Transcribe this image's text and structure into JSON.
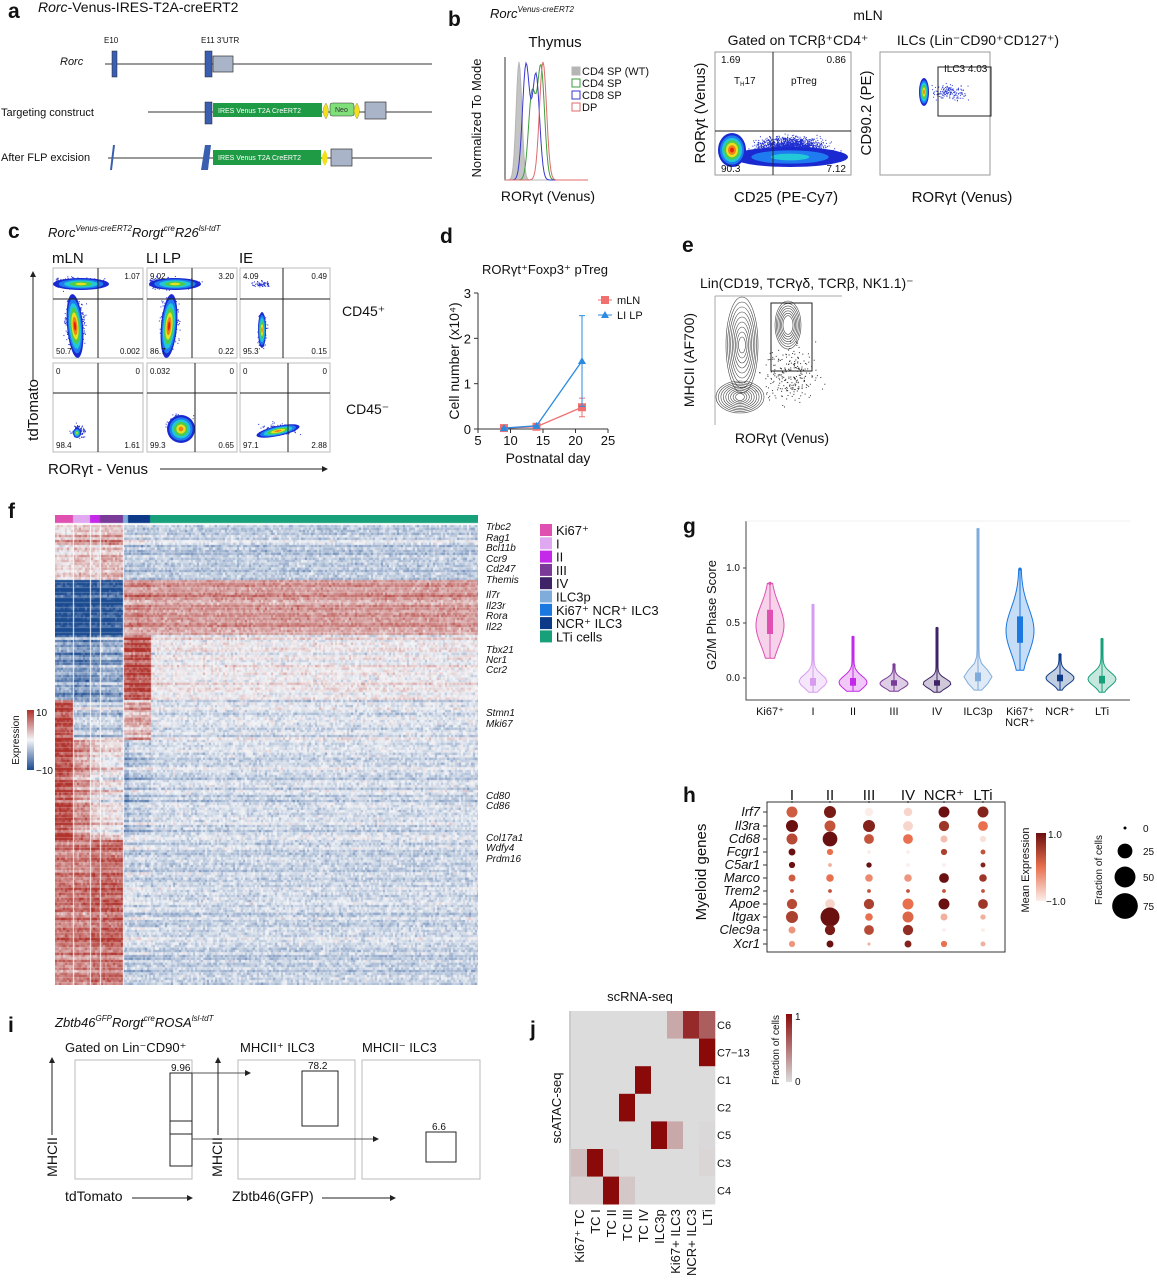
{
  "panel_a": {
    "label": "a",
    "title_italic": "Rorc",
    "title_rest": "-Venus-IRES-T2A-creERT2",
    "exon10": "E10",
    "exon11": "E11 3'UTR",
    "row_rorc": "Rorc",
    "row_targeting": "Targeting construct",
    "row_flp": "After FLP excision",
    "cassette": "IRES Venus T2A CreERT2",
    "neo": "Neo",
    "colors": {
      "exon": "#3a5fb0",
      "cassette": "#1f9a45",
      "neo": "#7fe07a",
      "frt": "#f2e01a",
      "utr": "#aab4c8"
    }
  },
  "panel_b": {
    "label": "b",
    "genotype": "Rorc",
    "genotype_sup": "Venus-creERT2",
    "thymus_title": "Thymus",
    "mln_title": "mLN",
    "hist_ylabel": "Normalized To Mode",
    "hist_xlabel": "RORγt (Venus)",
    "hist_legend": [
      {
        "name": "CD4 SP (WT)",
        "color": "#b5b5b5"
      },
      {
        "name": "CD4 SP",
        "color": "#3c9e3c"
      },
      {
        "name": "CD8 SP",
        "color": "#3838d0"
      },
      {
        "name": "DP",
        "color": "#e06a6a"
      }
    ],
    "tcr_title": "Gated on TCRβ⁺CD4⁺",
    "tcr_quadrants": {
      "tl": "1.69",
      "tr": "0.86",
      "bl": "90.3",
      "br": "7.12"
    },
    "th17": {
      "base": "T",
      "sub": "H",
      "rest": "17"
    },
    "ptreg": "pTreg",
    "tcr_ylabel": "RORγt (Venus)",
    "tcr_xlabel": "CD25 (PE-Cy7)",
    "ilc_title": "ILCs (Lin⁻CD90⁺CD127⁺)",
    "ilc_gate": "ILC3 4.03",
    "ilc_ylabel": "CD90.2 (PE)",
    "ilc_xlabel": "RORγt (Venus)"
  },
  "panel_c": {
    "label": "c",
    "genotype": [
      {
        "base": "Rorc",
        "sup": "Venus-creERT2"
      },
      {
        "base": "Rorgt",
        "sup": "cre"
      },
      {
        "base": "R26",
        "sup": "lsl-tdT"
      }
    ],
    "columns": [
      "mLN",
      "LI LP",
      "IE"
    ],
    "rows": [
      "CD45⁺",
      "CD45⁻"
    ],
    "quadrants": [
      [
        {
          "tl": "",
          "tr": "1.07",
          "bl": "50.7",
          "br": "0.002"
        },
        {
          "tl": "9.02",
          "tr": "3.20",
          "bl": "86.7",
          "br": "0.22"
        },
        {
          "tl": "4.09",
          "tr": "0.49",
          "bl": "95.3",
          "br": "0.15"
        }
      ],
      [
        {
          "tl": "0",
          "tr": "0",
          "bl": "98.4",
          "br": "1.61"
        },
        {
          "tl": "0.032",
          "tr": "0",
          "bl": "99.3",
          "br": "0.65"
        },
        {
          "tl": "0",
          "tr": "0",
          "bl": "97.1",
          "br": "2.88"
        }
      ]
    ],
    "ylabel": "tdTomato",
    "xlabel": "RORγt - Venus"
  },
  "panel_d": {
    "label": "d",
    "chart_data": {
      "type": "line",
      "title": "RORγt⁺Foxp3⁺ pTreg",
      "xlabel": "Postnatal day",
      "ylabel": "Cell number (x10⁴)",
      "xlim": [
        5,
        25
      ],
      "ylim": [
        0,
        3
      ],
      "xticks": [
        "5",
        "10",
        "15",
        "20",
        "25"
      ],
      "yticks": [
        "0",
        "1",
        "2",
        "3"
      ],
      "legend_position": "top-right",
      "series": [
        {
          "name": "mLN",
          "color": "#f07070",
          "marker": "square",
          "x": [
            9,
            14,
            21
          ],
          "y": [
            0.02,
            0.05,
            0.48
          ],
          "err_low": [
            0.02,
            0.05,
            0.27
          ],
          "err_high": [
            0.02,
            0.05,
            0.68
          ]
        },
        {
          "name": "LI LP",
          "color": "#2a8ae0",
          "marker": "triangle",
          "x": [
            9,
            14,
            21
          ],
          "y": [
            0.02,
            0.07,
            1.5
          ],
          "err_low": [
            0.02,
            0.07,
            0.5
          ],
          "err_high": [
            0.02,
            0.07,
            2.5
          ]
        }
      ]
    }
  },
  "panel_e": {
    "label": "e",
    "title": "Lin(CD19, TCRγδ, TCRβ, NK1.1)⁻",
    "ylabel": "MHCII (AF700)",
    "xlabel": "RORγt (Venus)"
  },
  "panel_f": {
    "label": "f",
    "genes": [
      "Trbc2",
      "Rag1",
      "Bcl11b",
      "Ccr9",
      "Cd247",
      "Themis",
      "Il7r",
      "Il23r",
      "Rora",
      "Il22",
      "Tbx21",
      "Ncr1",
      "Ccr2",
      "Stmn1",
      "Mki67",
      "Cd80",
      "Cd86",
      "Col17a1",
      "Wdfy4",
      "Prdm16"
    ],
    "legend": [
      {
        "name": "Ki67⁺",
        "color": "#e050b0"
      },
      {
        "name": "I",
        "color": "#e0a8f0"
      },
      {
        "name": "II",
        "color": "#c428e8"
      },
      {
        "name": "III",
        "color": "#7a3a98"
      },
      {
        "name": "IV",
        "color": "#3e2466"
      },
      {
        "name": "ILC3p",
        "color": "#80acdc"
      },
      {
        "name": "Ki67⁺ NCR⁺ ILC3",
        "color": "#1a78e0"
      },
      {
        "name": "NCR⁺ ILC3",
        "color": "#0c3a88"
      },
      {
        "name": "LTi cells",
        "color": "#18a07a"
      }
    ],
    "colorbar_title": "Expression",
    "colorbar_max": "10",
    "colorbar_min": "−10",
    "colors": {
      "high": "#b0302a",
      "mid": "#f3f5f8",
      "low": "#1a4a90"
    }
  },
  "panel_g": {
    "label": "g",
    "chart_data": {
      "type": "violin",
      "ylabel": "G2/M Phase Score",
      "ylim": [
        -0.2,
        1.4
      ],
      "yticks": [
        "0.0",
        "0.5",
        "1.0"
      ],
      "categories": [
        {
          "name": "Ki67⁺",
          "color": "#e050b0",
          "min": 0.18,
          "q1": 0.4,
          "median": 0.48,
          "q3": 0.62,
          "max": 0.86
        },
        {
          "name": "I",
          "color": "#d79cf0",
          "min": -0.13,
          "q1": -0.07,
          "median": -0.03,
          "q3": 0.0,
          "max": 0.66
        },
        {
          "name": "II",
          "color": "#c428e8",
          "min": -0.12,
          "q1": -0.07,
          "median": -0.04,
          "q3": 0.0,
          "max": 0.37
        },
        {
          "name": "III",
          "color": "#7a3a98",
          "min": -0.12,
          "q1": -0.07,
          "median": -0.05,
          "q3": -0.02,
          "max": 0.12
        },
        {
          "name": "IV",
          "color": "#3e2466",
          "min": -0.13,
          "q1": -0.07,
          "median": -0.05,
          "q3": -0.02,
          "max": 0.45
        },
        {
          "name": "ILC3p",
          "color": "#80acdc",
          "min": -0.11,
          "q1": -0.03,
          "median": 0.01,
          "q3": 0.05,
          "max": 1.35
        },
        {
          "name": "Ki67⁺",
          "name2": "NCR⁺",
          "color": "#1a78e0",
          "min": 0.07,
          "q1": 0.32,
          "median": 0.43,
          "q3": 0.56,
          "max": 0.99
        },
        {
          "name": "NCR⁺",
          "color": "#0c3a88",
          "min": -0.11,
          "q1": -0.03,
          "median": 0.0,
          "q3": 0.03,
          "max": 0.21
        },
        {
          "name": "LTi",
          "color": "#18a07a",
          "min": -0.13,
          "q1": -0.05,
          "median": -0.01,
          "q3": 0.02,
          "max": 0.35
        }
      ]
    }
  },
  "panel_h": {
    "label": "h",
    "chart_data": {
      "type": "dotplot",
      "ylabel": "Myeloid genes",
      "columns": [
        "I",
        "II",
        "III",
        "IV",
        "NCR⁺",
        "LTi"
      ],
      "genes": [
        "Irf7",
        "Il3ra",
        "Cd68",
        "Fcgr1",
        "C5ar1",
        "Marco",
        "Trem2",
        "Apoe",
        "Itgax",
        "Clec9a",
        "Xcr1"
      ],
      "mean_expression": [
        [
          0.2,
          0.9,
          -1.0,
          -0.8,
          1.0,
          0.8
        ],
        [
          1.0,
          0.3,
          0.8,
          -0.8,
          0.6,
          0.0
        ],
        [
          0.4,
          1.0,
          0.3,
          0.0,
          -0.6,
          -0.9
        ],
        [
          1.0,
          0.0,
          -1.0,
          -1.0,
          0.5,
          0.3
        ],
        [
          1.0,
          -0.5,
          1.0,
          -1.0,
          -1.0,
          0.8
        ],
        [
          0.2,
          0.0,
          -0.2,
          -0.3,
          1.0,
          0.6
        ],
        [
          0.3,
          0.3,
          0.3,
          0.3,
          0.3,
          0.3
        ],
        [
          0.4,
          -0.8,
          0.5,
          0.0,
          1.0,
          0.6
        ],
        [
          0.5,
          1.0,
          0.0,
          0.1,
          -0.5,
          -0.5
        ],
        [
          -0.3,
          0.9,
          0.4,
          0.7,
          -1.0,
          -1.0
        ],
        [
          -0.3,
          1.0,
          -0.5,
          0.8,
          0.0,
          -0.5
        ]
      ],
      "fraction_of_cells": [
        [
          25,
          30,
          15,
          15,
          25,
          25
        ],
        [
          30,
          25,
          30,
          20,
          22,
          20
        ],
        [
          25,
          45,
          20,
          20,
          10,
          8
        ],
        [
          10,
          8,
          3,
          3,
          8,
          5
        ],
        [
          8,
          3,
          6,
          3,
          3,
          5
        ],
        [
          10,
          12,
          12,
          12,
          20,
          12
        ],
        [
          3,
          3,
          3,
          3,
          3,
          3
        ],
        [
          22,
          20,
          22,
          25,
          25,
          20
        ],
        [
          30,
          75,
          12,
          25,
          10,
          6
        ],
        [
          10,
          22,
          20,
          22,
          3,
          3
        ],
        [
          8,
          10,
          2,
          10,
          8,
          5
        ]
      ],
      "colorbar_title": "Mean Expression",
      "colorbar_max": "1.0",
      "colorbar_min": "−1.0",
      "size_title": "Fraction of cells",
      "size_legend": [
        "0",
        "25",
        "50",
        "75"
      ],
      "colors": {
        "high": "#6b1010",
        "mid": "#e8704e",
        "low": "#fbeeea"
      }
    }
  },
  "panel_i": {
    "label": "i",
    "genotype": [
      {
        "base": "Zbtb46",
        "sup": "GFP"
      },
      {
        "base": "Rorgt",
        "sup": "cre"
      },
      {
        "base": "ROSA",
        "sup": "lsl-tdT"
      }
    ],
    "titles": [
      "Gated on Lin⁻CD90⁺",
      "MHCII⁺ ILC3",
      "MHCII⁻ ILC3"
    ],
    "gates": [
      "9.96",
      "78.2",
      "6.6"
    ],
    "ylabel": "MHCII",
    "xlabel_1": "tdTomato",
    "xlabel_2": "Zbtb46(GFP)"
  },
  "panel_j": {
    "label": "j",
    "chart_data": {
      "type": "heatmap",
      "title": "scRNA-seq",
      "ylabel": "scATAC-seq",
      "columns": [
        "Ki67⁺ TC",
        "TC I",
        "TC II",
        "TC III",
        "TC IV",
        "ILC3p",
        "Ki67+ ILC3",
        "NCR+ ILC3",
        "LTi"
      ],
      "rows": [
        "C6",
        "C7−13",
        "C1",
        "C2",
        "C5",
        "C3",
        "C4"
      ],
      "values": [
        [
          0,
          0,
          0,
          0,
          0,
          0,
          0.25,
          0.85,
          0.6
        ],
        [
          0,
          0,
          0,
          0,
          0,
          0,
          0,
          0,
          1
        ],
        [
          0,
          0,
          0,
          0,
          1,
          0,
          0,
          0,
          0
        ],
        [
          0,
          0,
          0,
          1,
          0,
          0,
          0,
          0,
          0
        ],
        [
          0,
          0,
          0,
          0,
          0,
          1,
          0.25,
          0,
          0.02
        ],
        [
          0.15,
          1,
          0.03,
          0,
          0,
          0,
          0,
          0,
          0.03
        ],
        [
          0.05,
          0.05,
          1,
          0.1,
          0,
          0,
          0,
          0,
          0
        ]
      ],
      "colorbar_title": "Fraction of cells",
      "colorbar_max": "1",
      "colorbar_min": "0",
      "colors": {
        "high": "#8a0a0a",
        "low": "#dcdcdc"
      }
    }
  }
}
